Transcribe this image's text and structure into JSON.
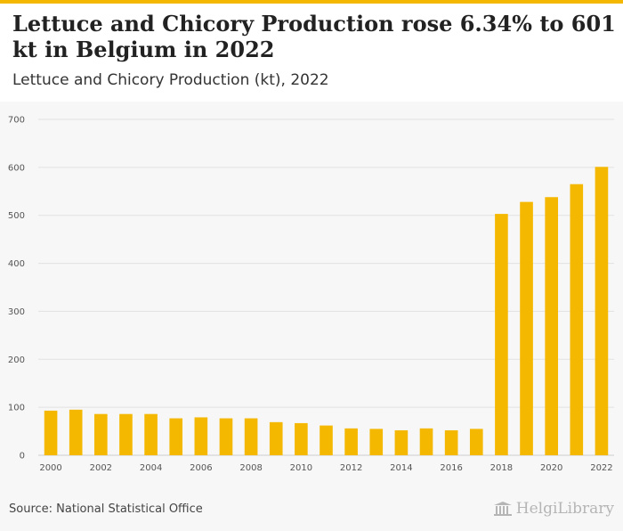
{
  "header": {
    "title": "Lettuce and Chicory Production rose 6.34% to 601 kt in Belgium in 2022",
    "subtitle": "Lettuce and Chicory Production (kt), 2022"
  },
  "footer": {
    "source": "Source: National Statistical Office",
    "brand": "HelgiLibrary",
    "brand_icon": "building-icon"
  },
  "colors": {
    "bar": "#f5b800",
    "accent": "#f5b800",
    "grid": "#e2e2e2"
  },
  "chart_data": {
    "type": "bar",
    "title": "Lettuce and Chicory Production (kt), 2022",
    "xlabel": "",
    "ylabel": "",
    "categories": [
      "2000",
      "2001",
      "2002",
      "2003",
      "2004",
      "2005",
      "2006",
      "2007",
      "2008",
      "2009",
      "2010",
      "2011",
      "2012",
      "2013",
      "2014",
      "2015",
      "2016",
      "2017",
      "2018",
      "2019",
      "2020",
      "2021",
      "2022"
    ],
    "x_tick_labels": [
      "2000",
      "2002",
      "2004",
      "2006",
      "2008",
      "2010",
      "2012",
      "2014",
      "2016",
      "2018",
      "2020",
      "2022"
    ],
    "values": [
      93,
      95,
      86,
      86,
      86,
      77,
      79,
      77,
      77,
      69,
      67,
      62,
      56,
      55,
      52,
      56,
      52,
      55,
      503,
      528,
      538,
      565,
      601
    ],
    "ylim": [
      0,
      700
    ],
    "yticks": [
      0,
      100,
      200,
      300,
      400,
      500,
      600,
      700
    ],
    "grid": true,
    "legend": "none"
  }
}
